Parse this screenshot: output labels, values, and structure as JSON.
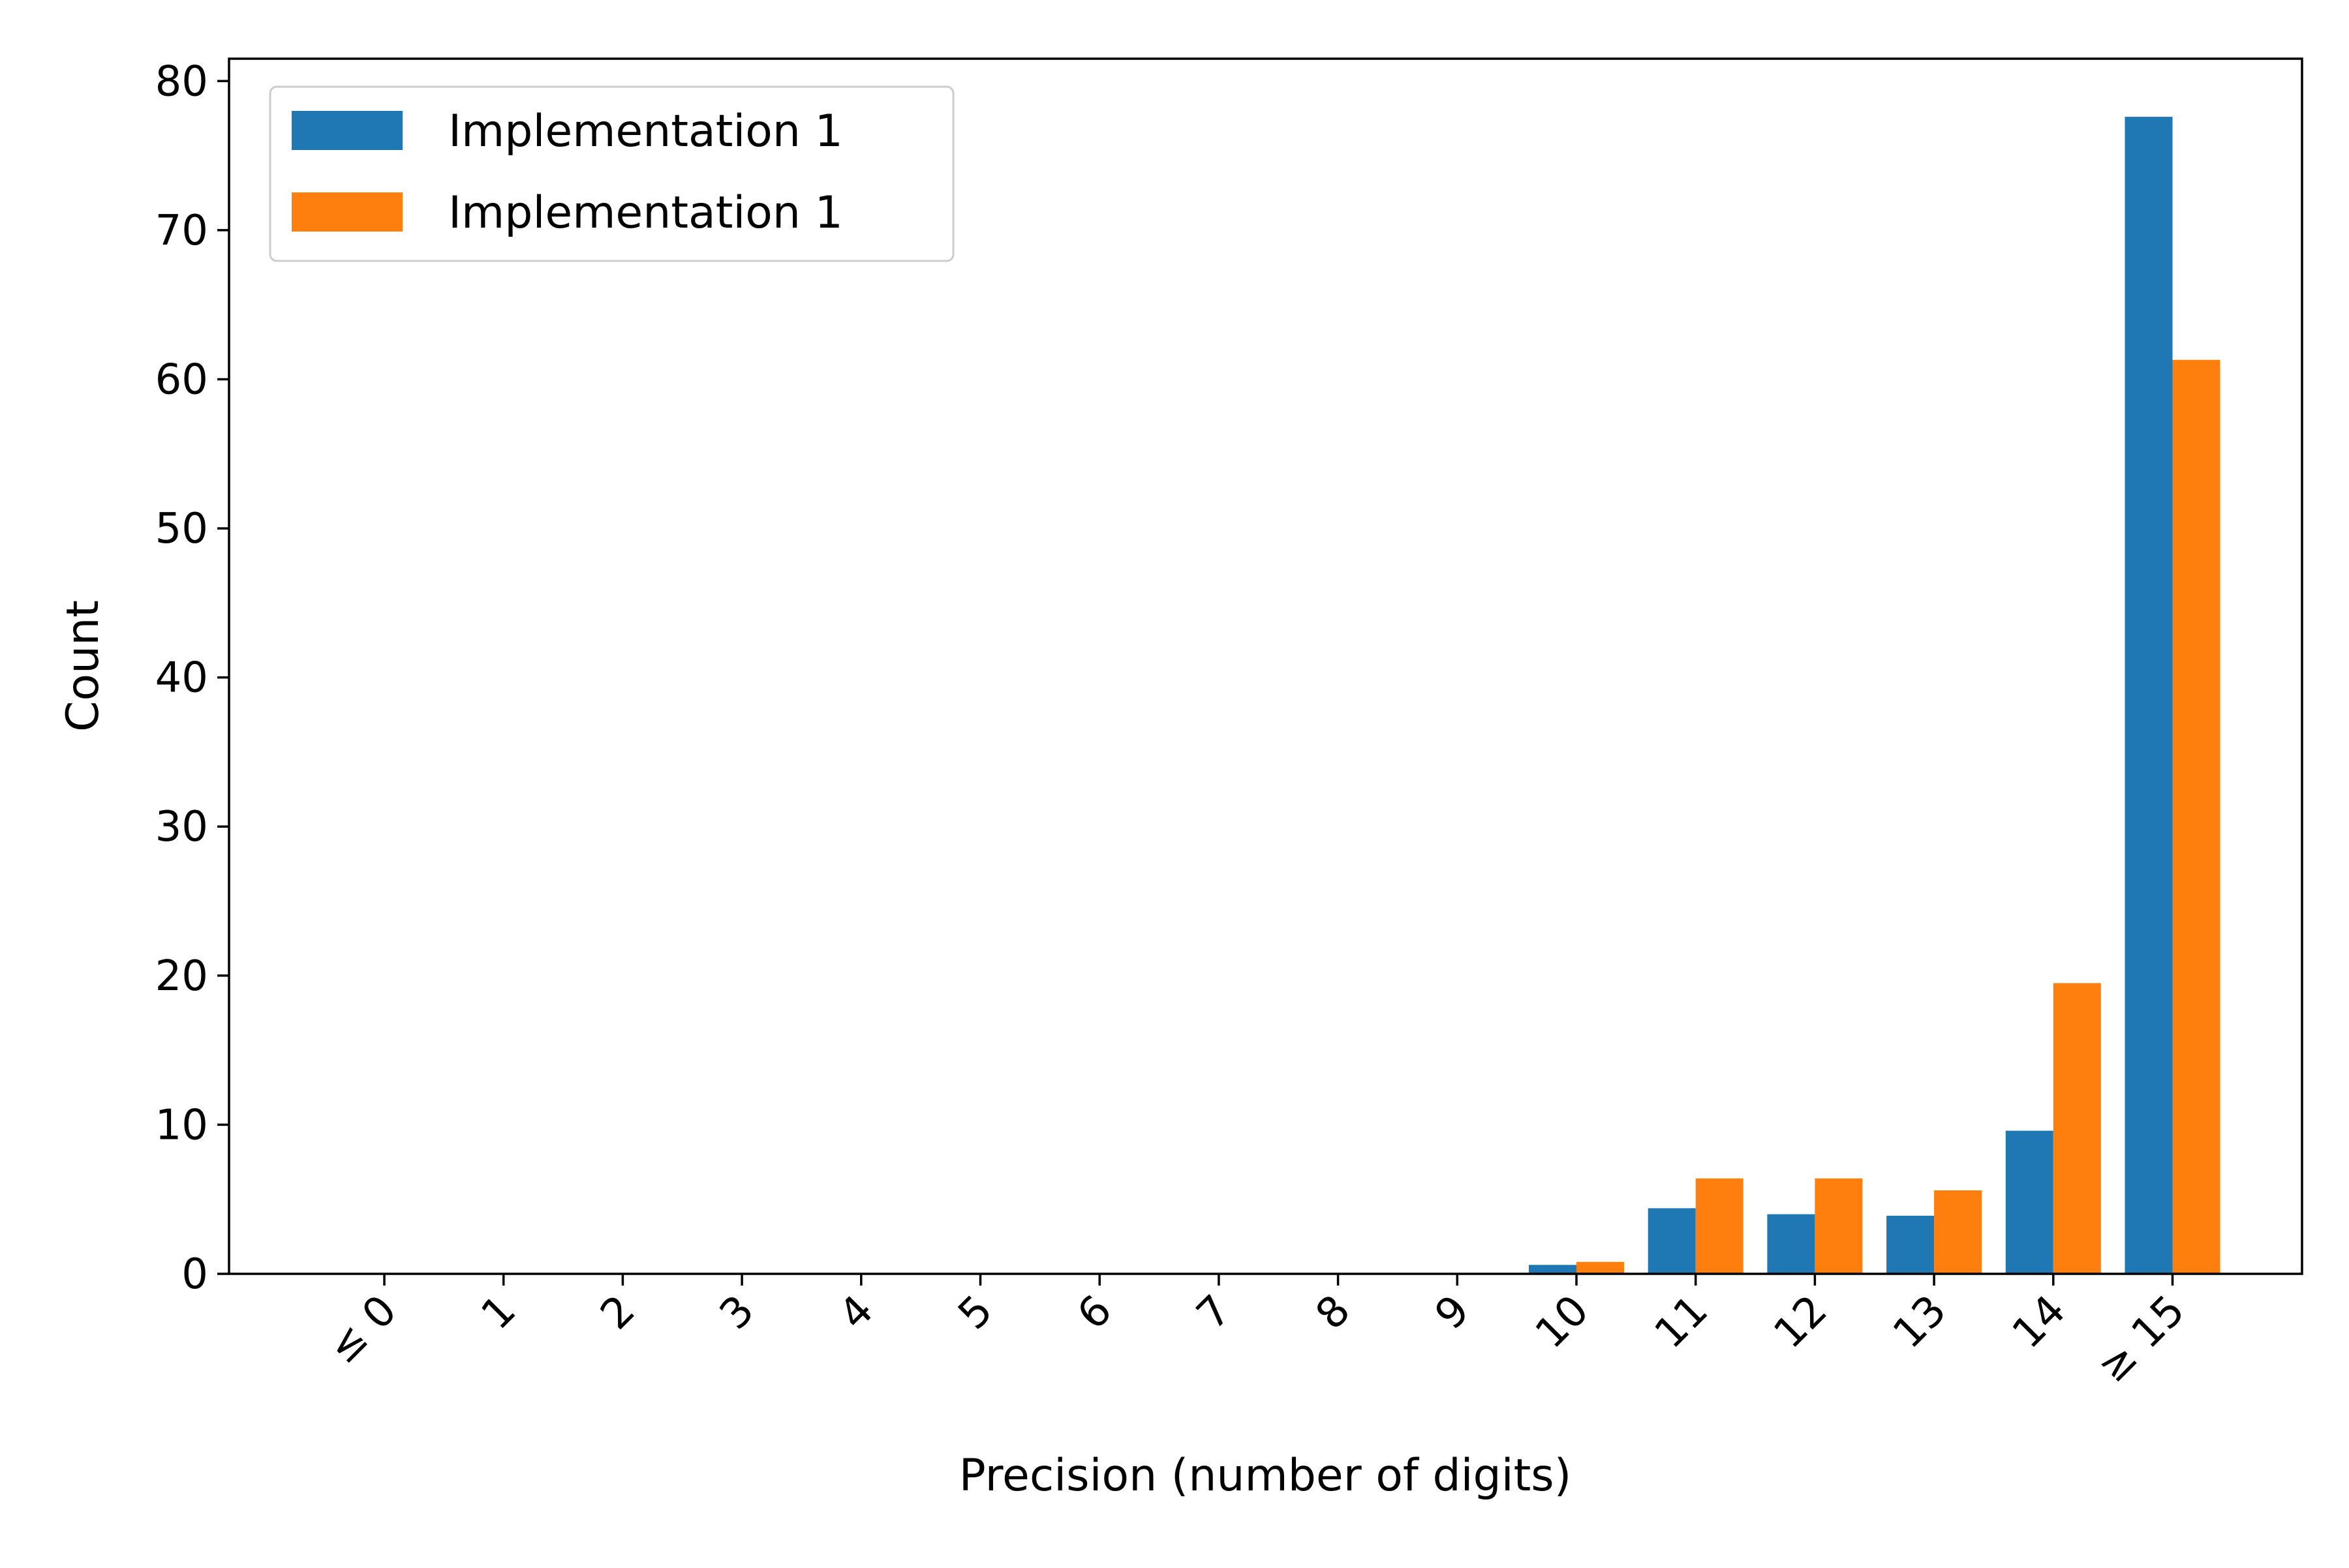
{
  "chart_data": {
    "type": "bar",
    "title": "",
    "xlabel": "Precision (number of digits)",
    "ylabel": "Count",
    "ylim": [
      0,
      81.5
    ],
    "yticks": [
      0,
      10,
      20,
      30,
      40,
      50,
      60,
      70,
      80
    ],
    "categories": [
      "≤ 0",
      "1",
      "2",
      "3",
      "4",
      "5",
      "6",
      "7",
      "8",
      "9",
      "10",
      "11",
      "12",
      "13",
      "14",
      "≥ 15"
    ],
    "series": [
      {
        "name": "Implementation 1",
        "color": "#1f77b4",
        "values": [
          0,
          0,
          0,
          0,
          0,
          0,
          0,
          0,
          0,
          0,
          0.6,
          4.4,
          4.0,
          3.9,
          9.6,
          77.6
        ]
      },
      {
        "name": "Implementation 1",
        "color": "#ff7f0e",
        "values": [
          0,
          0,
          0,
          0,
          0,
          0,
          0,
          0,
          0,
          0,
          0.8,
          6.4,
          6.4,
          5.6,
          19.5,
          61.3
        ]
      }
    ],
    "legend_position": "top-left",
    "grid": false,
    "xtick_rotation": "45 degrees"
  }
}
